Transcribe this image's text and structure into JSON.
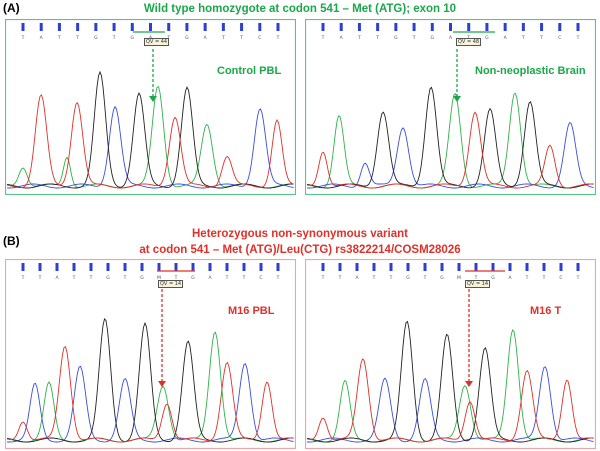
{
  "section_a": {
    "label": "(A)",
    "heading": "Wild type homozygote at codon 541 – Met (ATG); exon 10",
    "color": "#1aa84a",
    "panels": [
      {
        "label": "Control PBL",
        "qv": "QV = 44",
        "bases": [
          "T",
          "A",
          "T",
          "T",
          "G",
          "T",
          "G",
          "A",
          "T",
          "G",
          "A",
          "T",
          "T",
          "C",
          "T"
        ]
      },
      {
        "label": "Non-neoplastic Brain",
        "qv": "QV = 48",
        "bases": [
          "T",
          "A",
          "T",
          "T",
          "G",
          "T",
          "G",
          "A",
          "T",
          "G",
          "A",
          "T",
          "T",
          "C",
          "T"
        ]
      }
    ]
  },
  "section_b": {
    "label": "(B)",
    "heading_line1": "Heterozygous non-synonymous variant",
    "heading_line2": "at codon 541 – Met (ATG)/Leu(CTG) rs3822214/COSM28026",
    "color": "#e0302a",
    "panels": [
      {
        "label": "M16 PBL",
        "qv": "QV = 14",
        "bases": [
          "T",
          "T",
          "A",
          "T",
          "T",
          "G",
          "T",
          "G",
          "M",
          "T",
          "G",
          "A",
          "T",
          "T",
          "C",
          "T"
        ]
      },
      {
        "label": "M16 T",
        "qv": "QV = 14",
        "bases": [
          "T",
          "T",
          "A",
          "T",
          "T",
          "G",
          "T",
          "G",
          "M",
          "T",
          "G",
          "A",
          "T",
          "T",
          "C",
          "T"
        ]
      }
    ]
  },
  "trace_colors": {
    "A": "#2eb34a",
    "C": "#3a4ee0",
    "G": "#222222",
    "T": "#e0302a"
  }
}
